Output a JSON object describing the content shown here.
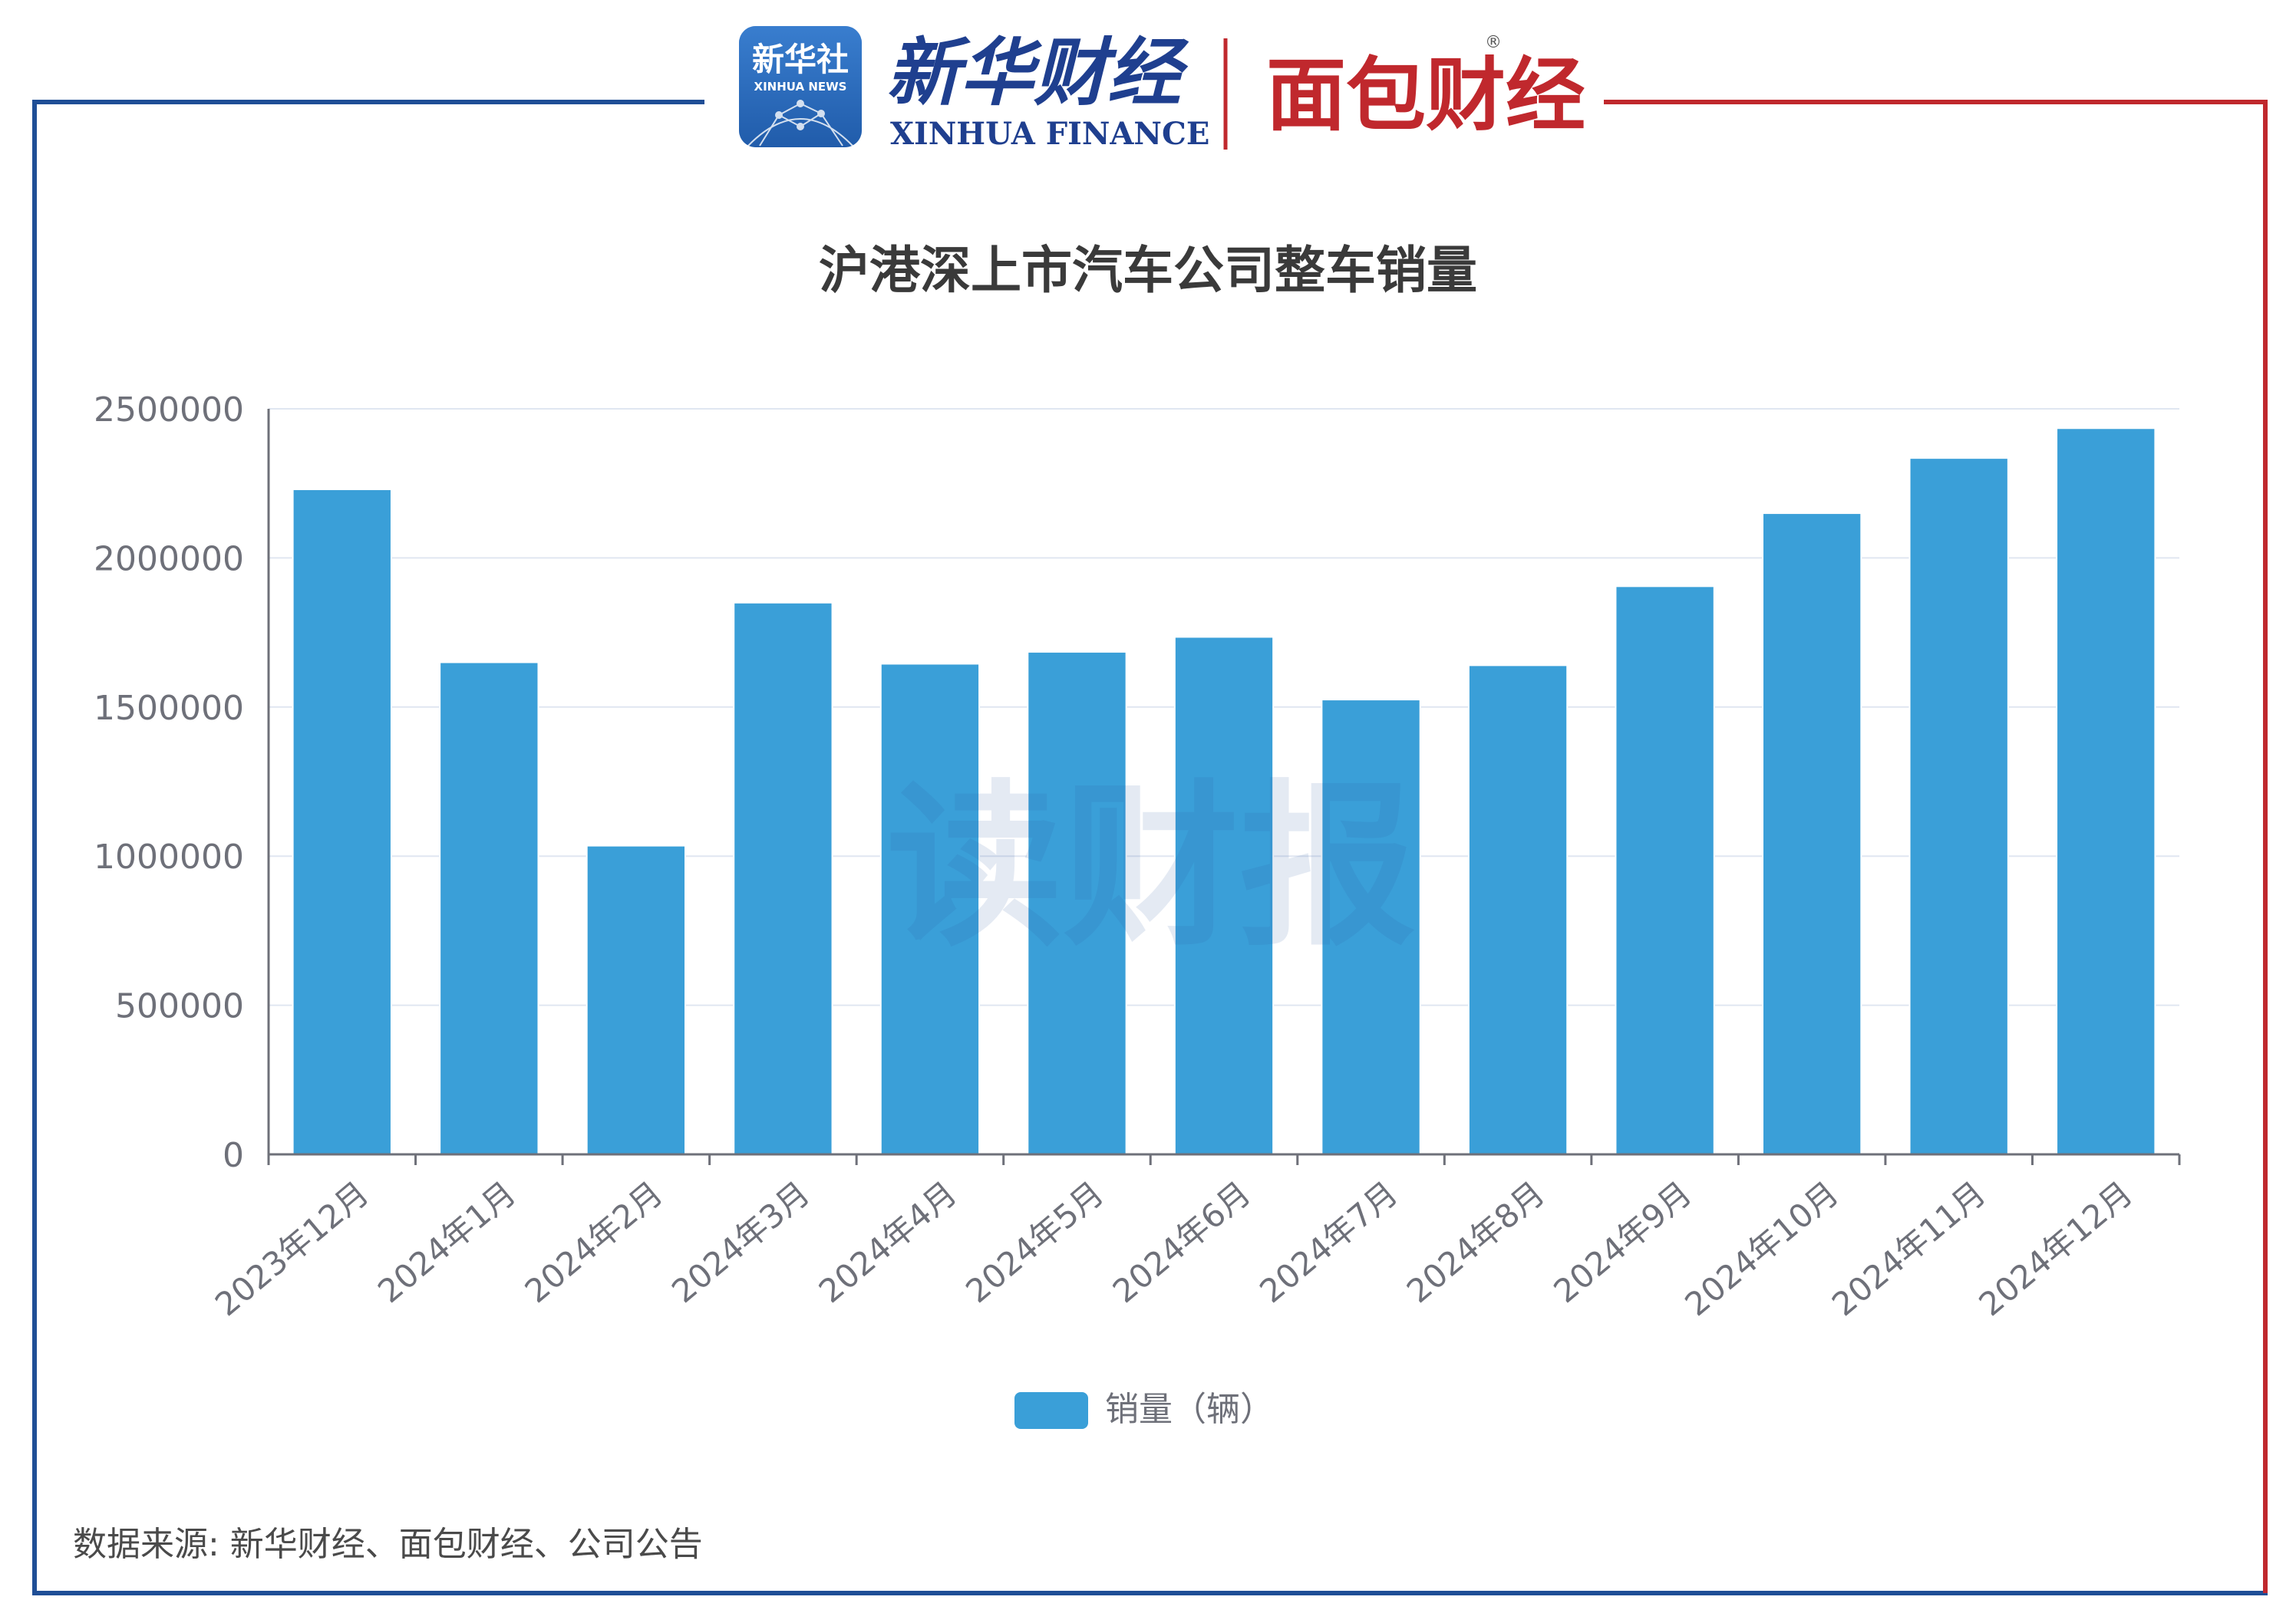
{
  "header": {
    "badge_cn": "新华社",
    "badge_en": "XINHUA NEWS",
    "brand_cn": "新华财经",
    "brand_en": "XINHUA FINANCE",
    "partner": "面包财经",
    "registered_mark": "®"
  },
  "watermark": "读财报",
  "footer": {
    "source": "数据来源: 新华财经、面包财经、公司公告"
  },
  "colors": {
    "bar": "#3a9fd8",
    "frame_left": "#1f4e96",
    "frame_right": "#c0282d",
    "grid": "#e0e6f1",
    "axis": "#6e7079"
  },
  "chart_data": {
    "type": "bar",
    "title": "沪港深上市汽车公司整车销量",
    "categories": [
      "2023年12月",
      "2024年1月",
      "2024年2月",
      "2024年3月",
      "2024年4月",
      "2024年5月",
      "2024年6月",
      "2024年7月",
      "2024年8月",
      "2024年9月",
      "2024年10月",
      "2024年11月",
      "2024年12月"
    ],
    "series": [
      {
        "name": "销量（辆）",
        "values": [
          2230000,
          1650000,
          1035000,
          1850000,
          1645000,
          1685000,
          1735000,
          1525000,
          1640000,
          1905000,
          2150000,
          2335000,
          2435000
        ]
      }
    ],
    "yticks": [
      "0",
      "500000",
      "1000000",
      "1500000",
      "2000000",
      "2500000"
    ],
    "ylim": [
      0,
      2500000
    ],
    "grid": true,
    "legend": "bottom-center"
  }
}
